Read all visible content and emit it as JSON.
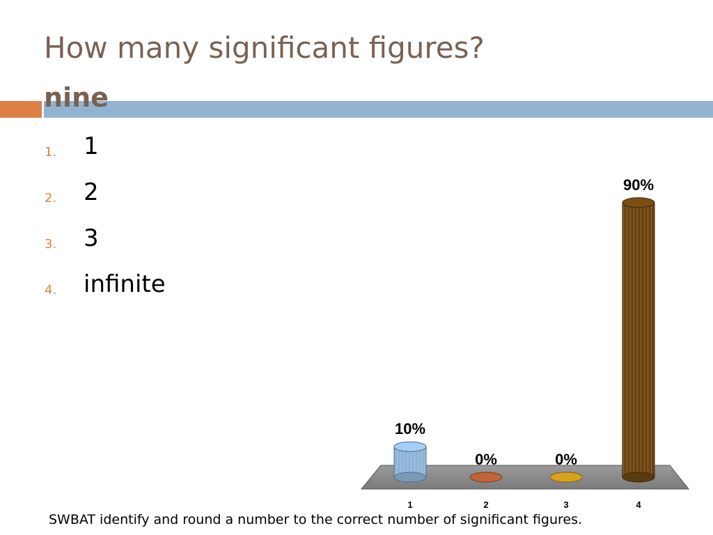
{
  "slide": {
    "title": "How many significant figures?",
    "subtitle": "nine",
    "footer": "SWBAT identify and round a number to the correct number of significant figures."
  },
  "choices": [
    {
      "num": "1.",
      "label": "1"
    },
    {
      "num": "2.",
      "label": "2"
    },
    {
      "num": "3.",
      "label": "3"
    },
    {
      "num": "4.",
      "label": "infinite"
    }
  ],
  "colors": {
    "title": "#7a6152",
    "accent_orange": "#dd8244",
    "accent_blue": "#92b3cf"
  },
  "chart_data": {
    "type": "bar",
    "categories": [
      "1",
      "2",
      "3",
      "4"
    ],
    "values": [
      10,
      0,
      0,
      90
    ],
    "value_labels": [
      "10%",
      "0%",
      "0%",
      "90%"
    ],
    "ylim": [
      0,
      100
    ],
    "bar_colors": [
      "#8fb4d9",
      "#c0643a",
      "#d9a21c",
      "#6b4410"
    ],
    "grid": false,
    "legend": false
  }
}
